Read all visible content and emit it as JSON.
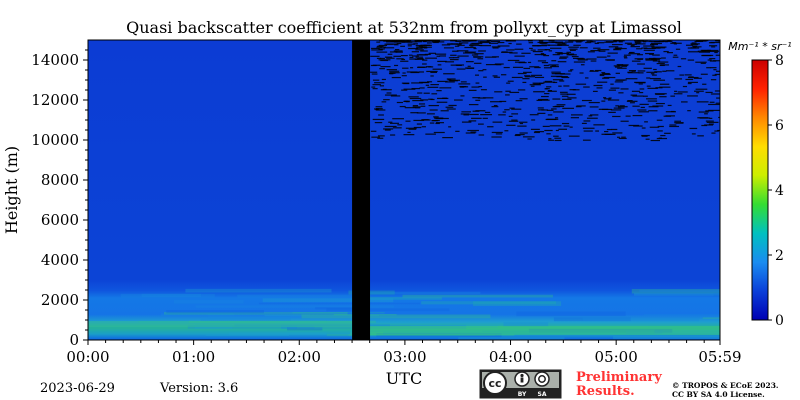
{
  "chart_data": {
    "type": "heatmap",
    "title": "Quasi backscatter coefficient at 532nm from pollyxt_cyp at Limassol",
    "xlabel": "UTC",
    "ylabel": "Height (m)",
    "x_ticks": [
      "00:00",
      "01:00",
      "02:00",
      "03:00",
      "04:00",
      "05:00",
      "05:59"
    ],
    "x_range_hours": [
      0,
      5.983
    ],
    "y_ticks": [
      0,
      2000,
      4000,
      6000,
      8000,
      10000,
      12000,
      14000
    ],
    "y_range_m": [
      0,
      15000
    ],
    "colorbar": {
      "unit_label": "Mm⁻¹ * sr⁻¹",
      "ticks": [
        0,
        2,
        4,
        6,
        8
      ],
      "range": [
        0,
        8
      ],
      "colormap": [
        "#0000b3",
        "#0a3fd9",
        "#1a8cf0",
        "#00c0c0",
        "#33dd33",
        "#ccee00",
        "#ffdd00",
        "#ff8800",
        "#ff2200",
        "#cc0000"
      ]
    },
    "data_gap_utc_hours": [
      2.5,
      2.67
    ],
    "layers": [
      {
        "height_range_m": [
          0,
          2500
        ],
        "level": "elevated",
        "approx_value": 1.5
      },
      {
        "height_range_m": [
          200,
          1000
        ],
        "level": "high",
        "approx_value": 2.5
      },
      {
        "height_range_m": [
          2500,
          15000
        ],
        "level": "background",
        "approx_value": 0.6
      }
    ],
    "noise_above_m": 10000,
    "noise_start_utc_hours": 2.67
  },
  "footer": {
    "date": "2023-06-29",
    "version": "Version: 3.6",
    "license_badge": {
      "cc": "cc",
      "by": "BY",
      "sa": "SA"
    },
    "preliminary_line1": "Preliminary",
    "preliminary_line2": "Results.",
    "copyright_line1": "© TROPOS & ECoE 2023.",
    "copyright_line2": "CC BY SA 4.0 License."
  },
  "colors": {
    "preliminary": "#ff3333",
    "badge_bg": "#aab0aa",
    "badge_dark": "#222222"
  }
}
